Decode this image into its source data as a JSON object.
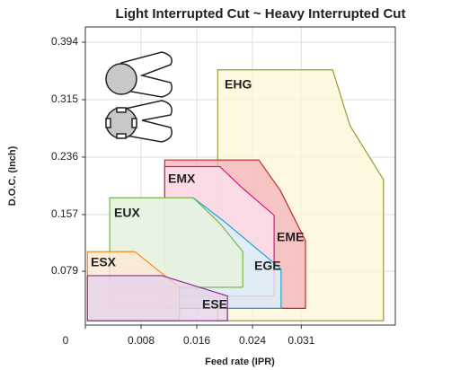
{
  "chart_data": {
    "type": "region",
    "title": "Light Interrupted Cut ~ Heavy Interrupted Cut",
    "x_label": "Feed rate (IPR)",
    "y_label": "D.O.C. (Inch)",
    "xlim": [
      0,
      0.0445
    ],
    "ylim": [
      0.005,
      0.415
    ],
    "xticks": [
      0,
      0.008,
      0.016,
      0.024,
      0.031
    ],
    "yticks": [
      0.079,
      0.157,
      0.236,
      0.315,
      0.394
    ],
    "grid": true,
    "series": [
      {
        "name": "EHG",
        "color": "#9a9a3a",
        "fill": "#fbf7d8",
        "x": [
          0.019,
          0.0355,
          0.038,
          0.0428,
          0.0428,
          0.019
        ],
        "values": [
          0.356,
          0.356,
          0.279,
          0.205,
          0.011,
          0.011
        ]
      },
      {
        "name": "EME",
        "color": "#c0282e",
        "fill": "#f4b8bb",
        "x": [
          0.0114,
          0.0249,
          0.028,
          0.0316,
          0.0316,
          0.0114
        ],
        "values": [
          0.232,
          0.232,
          0.19,
          0.121,
          0.028,
          0.028
        ]
      },
      {
        "name": "EMX",
        "color": "#e0147f",
        "fill": "#fbe0ee",
        "x": [
          0.0114,
          0.0193,
          0.0226,
          0.0271,
          0.0271,
          0.0114
        ],
        "values": [
          0.223,
          0.223,
          0.193,
          0.156,
          0.045,
          0.045
        ]
      },
      {
        "name": "EGE",
        "color": "#1aa6d8",
        "fill": "#dcf0fa",
        "x": [
          0.0035,
          0.0155,
          0.02,
          0.0281,
          0.0281,
          0.0035
        ],
        "values": [
          0.18,
          0.18,
          0.147,
          0.082,
          0.028,
          0.028
        ]
      },
      {
        "name": "EUX",
        "color": "#7ab648",
        "fill": "#e9f2dc",
        "x": [
          0.0035,
          0.0155,
          0.0193,
          0.0226,
          0.0226,
          0.0035
        ],
        "values": [
          0.18,
          0.18,
          0.145,
          0.106,
          0.057,
          0.057
        ]
      },
      {
        "name": "ESX",
        "color": "#f08a24",
        "fill": "#fde8d2",
        "x": [
          0.0003,
          0.0071,
          0.0135,
          0.0135,
          0.0003
        ],
        "values": [
          0.106,
          0.106,
          0.057,
          0.011,
          0.011
        ]
      },
      {
        "name": "ESE",
        "color": "#8d2e8e",
        "fill": "#e7d3ea",
        "x": [
          0.0003,
          0.011,
          0.0204,
          0.0204,
          0.0003
        ],
        "values": [
          0.073,
          0.073,
          0.045,
          0.011,
          0.011
        ]
      }
    ]
  }
}
